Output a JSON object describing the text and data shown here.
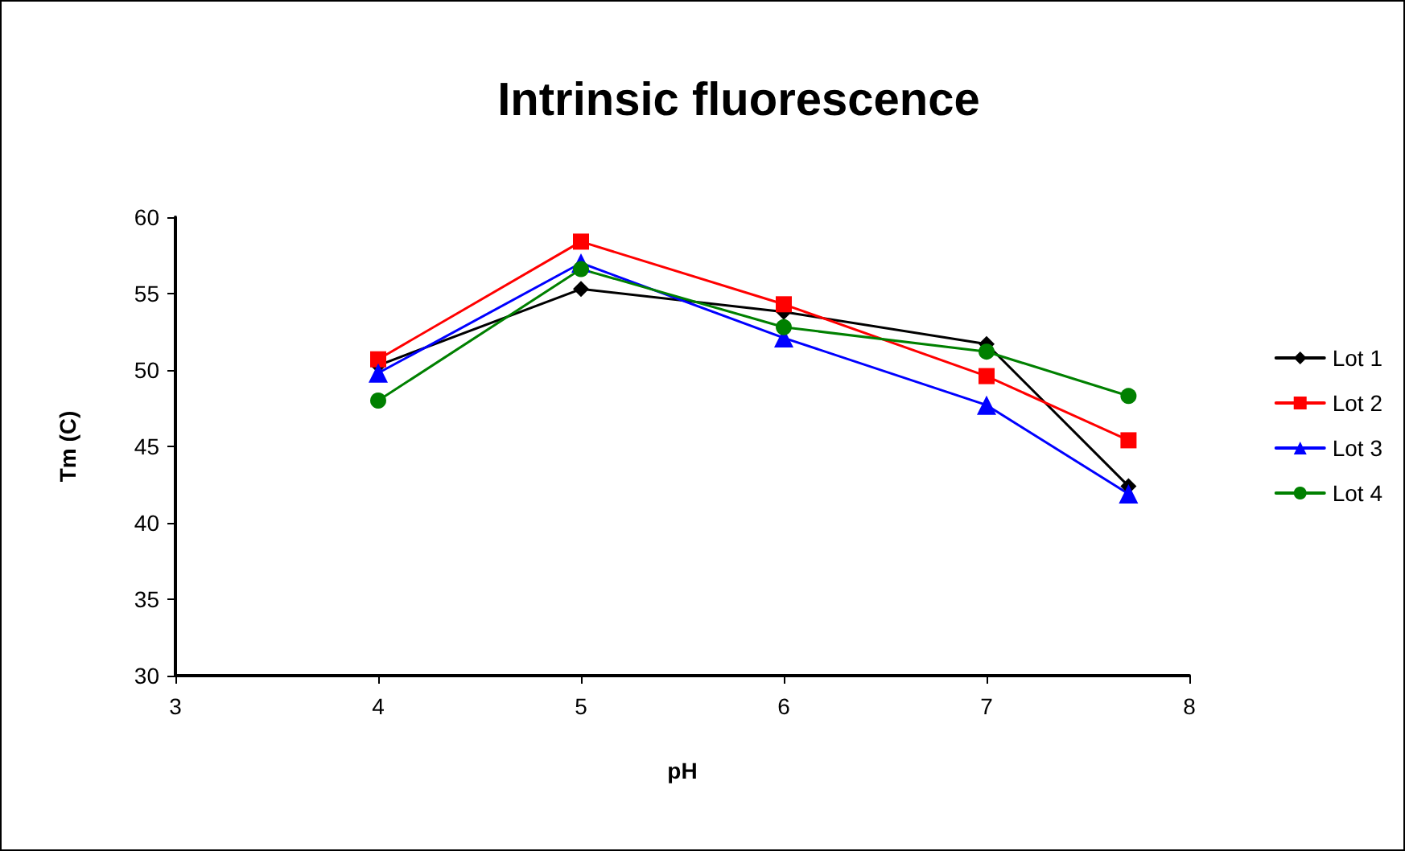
{
  "chart_data": {
    "type": "line",
    "title": "Intrinsic fluorescence",
    "xlabel": "pH",
    "ylabel": "Tm (C)",
    "x": [
      4,
      5,
      6,
      7,
      7.7
    ],
    "series": [
      {
        "name": "Lot 1",
        "color": "#000000",
        "marker": "diamond",
        "values": [
          50.3,
          55.3,
          53.8,
          51.7,
          42.4
        ]
      },
      {
        "name": "Lot 2",
        "color": "#ff0000",
        "marker": "square",
        "values": [
          50.7,
          58.4,
          54.3,
          49.6,
          45.4
        ]
      },
      {
        "name": "Lot 3",
        "color": "#0000ff",
        "marker": "triangle",
        "values": [
          49.8,
          57.0,
          52.1,
          47.7,
          41.9
        ]
      },
      {
        "name": "Lot 4",
        "color": "#008000",
        "marker": "circle",
        "values": [
          48.0,
          56.6,
          52.8,
          51.2,
          48.3
        ]
      }
    ],
    "xlim": [
      3,
      8
    ],
    "xticks": [
      3,
      4,
      5,
      6,
      7,
      8
    ],
    "ylim": [
      30,
      60
    ],
    "yticks": [
      30,
      35,
      40,
      45,
      50,
      55,
      60
    ],
    "grid": false,
    "legend": "right",
    "line_style": "solid"
  }
}
